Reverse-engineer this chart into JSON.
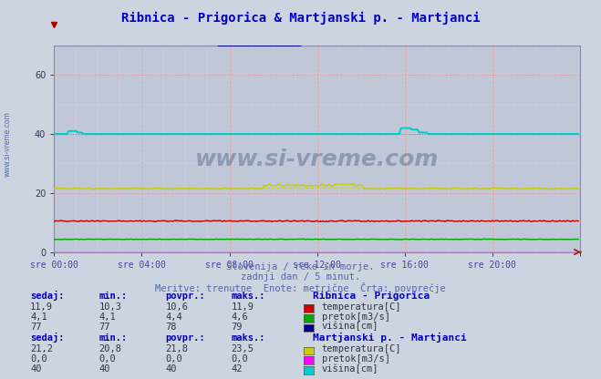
{
  "title": "Ribnica - Prigorica & Martjanski p. - Martjanci",
  "title_color": "#0000cc",
  "bg_color": "#ccd4e0",
  "plot_bg_color": "#c0c8d8",
  "n_points": 288,
  "x_labels": [
    "sre 00:00",
    "sre 04:00",
    "sre 08:00",
    "sre 12:00",
    "sre 16:00",
    "sre 20:00"
  ],
  "subtitle1": "Slovenija / reke in morje.",
  "subtitle2": "zadnji dan / 5 minut.",
  "subtitle3": "Meritve: trenutne  Enote: metrične  Črta: povprečje",
  "watermark": "www.si-vreme.com",
  "ylim": [
    0,
    70
  ],
  "yticks": [
    0,
    20,
    40,
    60
  ],
  "series": {
    "ribnica_temp": {
      "color": "#cc0000",
      "avg": 10.6,
      "base": 10.5
    },
    "ribnica_pretok": {
      "color": "#00aa00",
      "avg": 4.4,
      "base": 4.3
    },
    "ribnica_visina": {
      "color": "#000099",
      "avg": 78.0,
      "base": 77.0
    },
    "martjanci_temp": {
      "color": "#cccc00",
      "avg": 21.8,
      "base": 21.5
    },
    "martjanci_pretok": {
      "color": "#ff00ff",
      "avg": 0.0,
      "base": 0.0
    },
    "martjanci_visina": {
      "color": "#00cccc",
      "avg": 40.0,
      "base": 40.0
    }
  },
  "table": {
    "headers": [
      "sedaj:",
      "min.:",
      "povpr.:",
      "maks.:"
    ],
    "ribnica_title": "Ribnica - Prigorica",
    "ribnica_rows": [
      {
        "label": "temperatura[C]",
        "color": "#cc0000",
        "vals": [
          "11,9",
          "10,3",
          "10,6",
          "11,9"
        ]
      },
      {
        "label": "pretok[m3/s]",
        "color": "#00aa00",
        "vals": [
          "4,1",
          "4,1",
          "4,4",
          "4,6"
        ]
      },
      {
        "label": "višina[cm]",
        "color": "#000099",
        "vals": [
          "77",
          "77",
          "78",
          "79"
        ]
      }
    ],
    "martjanci_title": "Martjanski p. - Martjanci",
    "martjanci_rows": [
      {
        "label": "temperatura[C]",
        "color": "#cccc00",
        "vals": [
          "21,2",
          "20,8",
          "21,8",
          "23,5"
        ]
      },
      {
        "label": "pretok[m3/s]",
        "color": "#ff00ff",
        "vals": [
          "0,0",
          "0,0",
          "0,0",
          "0,0"
        ]
      },
      {
        "label": "višina[cm]",
        "color": "#00cccc",
        "vals": [
          "40",
          "40",
          "40",
          "42"
        ]
      }
    ]
  }
}
